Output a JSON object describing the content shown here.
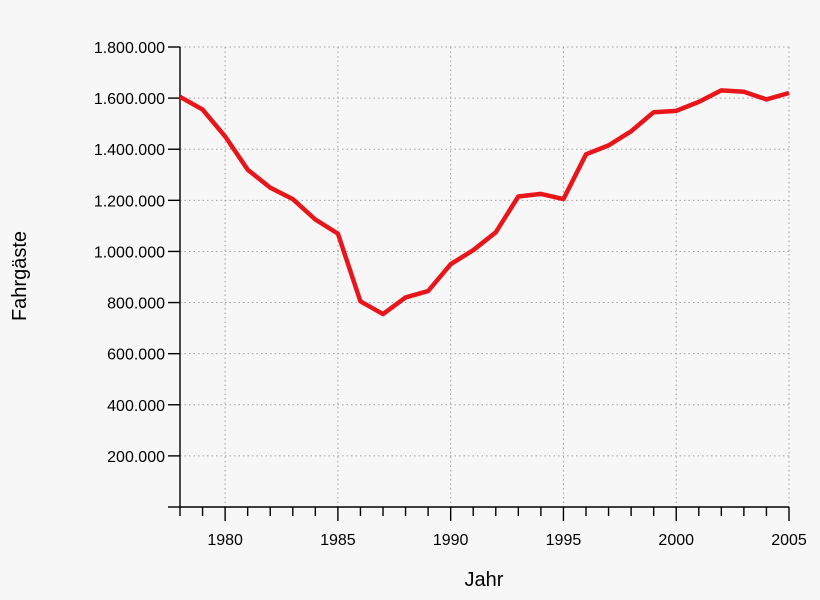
{
  "chart_data": {
    "type": "line",
    "xlabel": "Jahr",
    "ylabel": "Fahrgäste",
    "xlim": [
      1978,
      2005
    ],
    "ylim": [
      0,
      1800000
    ],
    "grid": true,
    "x_ticks": [
      1980,
      1985,
      1990,
      1995,
      2000,
      2005
    ],
    "x_tick_labels": [
      "1980",
      "1985",
      "1990",
      "1995",
      "2000",
      "2005"
    ],
    "y_ticks": [
      200000,
      400000,
      600000,
      800000,
      1000000,
      1200000,
      1400000,
      1600000,
      1800000
    ],
    "y_tick_labels": [
      "200.000",
      "400.000",
      "600.000",
      "800.000",
      "1.000.000",
      "1.200.000",
      "1.400.000",
      "1.600.000",
      "1.800.000"
    ],
    "series": [
      {
        "color": "#e8161b",
        "x": [
          1978,
          1979,
          1980,
          1981,
          1982,
          1983,
          1984,
          1985,
          1986,
          1987,
          1988,
          1989,
          1990,
          1991,
          1992,
          1993,
          1994,
          1995,
          1996,
          1997,
          1998,
          1999,
          2000,
          2001,
          2002,
          2003,
          2004,
          2005
        ],
        "values": [
          1605000,
          1555000,
          1450000,
          1320000,
          1250000,
          1205000,
          1125000,
          1070000,
          805000,
          755000,
          820000,
          845000,
          950000,
          1005000,
          1075000,
          1215000,
          1225000,
          1205000,
          1380000,
          1415000,
          1470000,
          1545000,
          1550000,
          1585000,
          1630000,
          1625000,
          1595000,
          1620000
        ]
      }
    ]
  }
}
